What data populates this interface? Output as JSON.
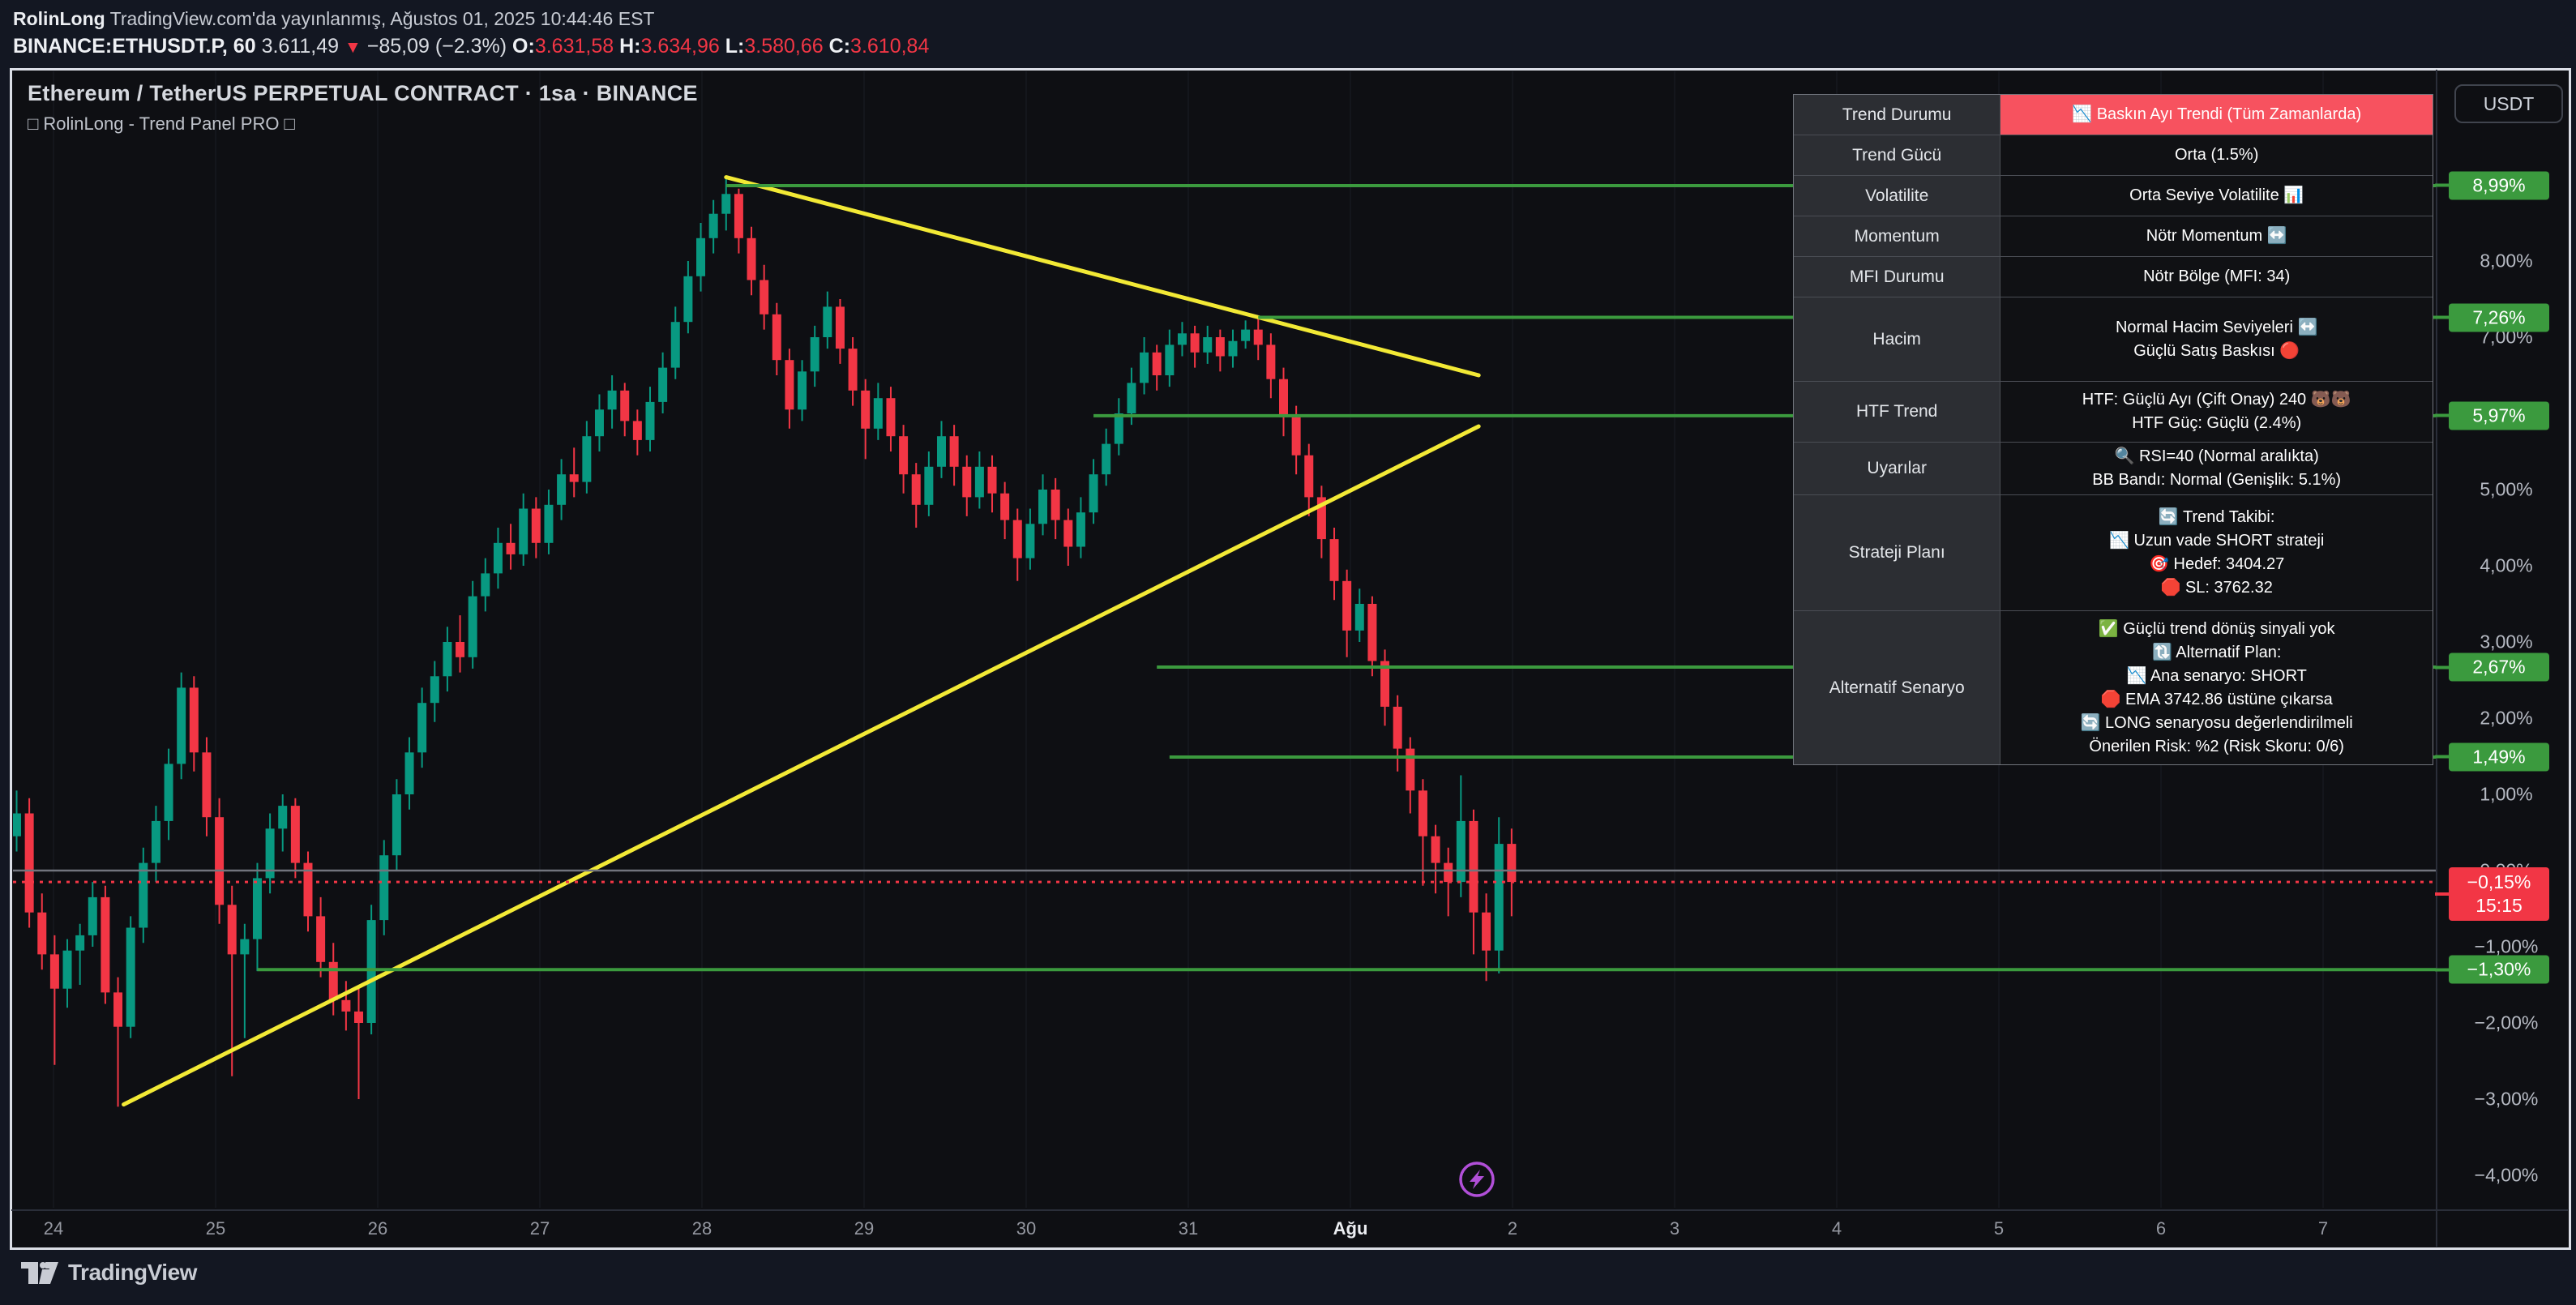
{
  "header": {
    "author": "RolinLong",
    "published": " TradingView.com'da yayınlanmış, Ağustos 01, 2025 10:44:46 EST",
    "symbol": "BINANCE:ETHUSDT.P, 60",
    "last_price": "3.611,49",
    "down_arrow": "▼",
    "change": "−85,09 (−2.3%)",
    "o_label": "O:",
    "o_value": "3.631,58",
    "h_label": "H:",
    "h_value": "3.634,96",
    "l_label": "L:",
    "l_value": "3.580,66",
    "c_label": "C:",
    "c_value": "3.610,84"
  },
  "chart_title": {
    "line1": "Ethereum / TetherUS PERPETUAL CONTRACT · 1sa · BINANCE",
    "line2": "□ RolinLong - Trend Panel PRO □"
  },
  "panel": {
    "rows": [
      {
        "label": "Trend Durumu",
        "lines": [
          "📉 Baskın Ayı Trendi (Tüm Zamanlarda)"
        ],
        "highlight": "red",
        "height": 50
      },
      {
        "label": "Trend Gücü",
        "lines": [
          "Orta (1.5%)"
        ],
        "height": 50
      },
      {
        "label": "Volatilite",
        "lines": [
          "Orta Seviye Volatilite 📊"
        ],
        "height": 50
      },
      {
        "label": "Momentum",
        "lines": [
          "Nötr Momentum ↔️"
        ],
        "height": 50
      },
      {
        "label": "MFI Durumu",
        "lines": [
          "Nötr Bölge (MFI: 34)"
        ],
        "height": 50
      },
      {
        "label": "Hacim",
        "lines": [
          "Normal Hacim Seviyeleri ↔️",
          "Güçlü Satış Baskısı 🔴"
        ],
        "height": 104
      },
      {
        "label": "HTF Trend",
        "lines": [
          "HTF: Güçlü Ayı (Çift Onay) 240 🐻🐻",
          "HTF Güç: Güçlü (2.4%)"
        ],
        "height": 75
      },
      {
        "label": "Uyarılar",
        "lines": [
          "🔍 RSI=40 (Normal aralıkta)",
          "BB Bandı: Normal (Genişlik: 5.1%)"
        ],
        "height": 65
      },
      {
        "label": "Strateji Planı",
        "lines": [
          "🔄 Trend Takibi:",
          "📉 Uzun vade SHORT strateji",
          "🎯 Hedef: 3404.27",
          "🛑 SL: 3762.32"
        ],
        "height": 143
      },
      {
        "label": "Alternatif Senaryo",
        "lines": [
          "✅ Güçlü trend dönüş sinyali yok",
          "🔃 Alternatif Plan:",
          "📉 Ana senaryo: SHORT",
          "🛑 EMA 3742.86 üstüne çıkarsa",
          "🔄 LONG senaryosu değerlendirilmeli",
          "Önerilen Risk: %2 (Risk Skoru: 0/6)"
        ],
        "height": 189
      }
    ]
  },
  "price_scale": {
    "currency_button": "USDT",
    "labels": [
      {
        "text": "8,99%",
        "pct": 8.99,
        "style": "green"
      },
      {
        "text": "8,00%",
        "pct": 8.0,
        "style": "plain"
      },
      {
        "text": "7,00%",
        "pct": 7.0,
        "style": "plain"
      },
      {
        "text": "7,26%",
        "pct": 7.26,
        "style": "green"
      },
      {
        "text": "5,97%",
        "pct": 5.97,
        "style": "green"
      },
      {
        "text": "5,00%",
        "pct": 5.0,
        "style": "plain"
      },
      {
        "text": "4,00%",
        "pct": 4.0,
        "style": "plain"
      },
      {
        "text": "3,00%",
        "pct": 3.0,
        "style": "plain"
      },
      {
        "text": "2,67%",
        "pct": 2.67,
        "style": "green"
      },
      {
        "text": "2,00%",
        "pct": 2.0,
        "style": "plain"
      },
      {
        "text": "1,49%",
        "pct": 1.49,
        "style": "green"
      },
      {
        "text": "1,00%",
        "pct": 1.0,
        "style": "plain"
      },
      {
        "text": "0,00%",
        "pct": 0.0,
        "style": "plain"
      },
      {
        "text": "−1,00%",
        "pct": -1.0,
        "style": "plain"
      },
      {
        "text": "−1,30%",
        "pct": -1.3,
        "style": "green"
      },
      {
        "text": "−2,00%",
        "pct": -2.0,
        "style": "plain"
      },
      {
        "text": "−3,00%",
        "pct": -3.0,
        "style": "plain"
      },
      {
        "text": "−4,00%",
        "pct": -4.0,
        "style": "plain"
      }
    ],
    "current": {
      "text": "−0,15%",
      "time": "15:15",
      "pct": -0.15
    }
  },
  "time_axis": {
    "ticks": [
      {
        "label": "24"
      },
      {
        "label": "25"
      },
      {
        "label": "26"
      },
      {
        "label": "27"
      },
      {
        "label": "28"
      },
      {
        "label": "29"
      },
      {
        "label": "30"
      },
      {
        "label": "31"
      },
      {
        "label": "Ağu",
        "bold": true
      },
      {
        "label": "2"
      },
      {
        "label": "3"
      },
      {
        "label": "4"
      },
      {
        "label": "5"
      },
      {
        "label": "6"
      },
      {
        "label": "7"
      }
    ]
  },
  "watermark": "TradingView",
  "chart_data": {
    "type": "candlestick",
    "title": "Ethereum / TetherUS PERPETUAL CONTRACT, 60 min, BINANCE",
    "y_axis_unit": "percent",
    "ylim": [
      -4.6,
      10.4
    ],
    "x_dates": [
      "24",
      "25",
      "26",
      "27",
      "28",
      "29",
      "30",
      "31",
      "Ağu",
      "2",
      "3",
      "4",
      "5",
      "6",
      "7"
    ],
    "current_price_pct": -0.15,
    "current_price_time": "15:15",
    "colors": {
      "up": "#089981",
      "down": "#f23645",
      "hline": "#3b9a3e",
      "trendline": "#f2e935",
      "zero_line": "#71747d",
      "price_line": "#f23645",
      "grid": "#1b1e26",
      "marker": "#b14fd8"
    },
    "hlines": [
      {
        "pct": 8.99,
        "start_bar": 56
      },
      {
        "pct": 7.26,
        "start_bar": 98
      },
      {
        "pct": 5.97,
        "start_bar": 85
      },
      {
        "pct": 2.67,
        "start_bar": 90
      },
      {
        "pct": 1.49,
        "start_bar": 91
      },
      {
        "pct": -1.3,
        "start_bar": 19
      }
    ],
    "trendlines": [
      {
        "x1_bar": 56,
        "y1_pct": 9.1,
        "x2_bar": 115.4,
        "y2_pct": 6.5
      },
      {
        "x1_bar": 8.45,
        "y1_pct": -3.07,
        "x2_bar": 115.4,
        "y2_pct": 5.83
      }
    ],
    "zero_line_pct": 0.0,
    "candles_ohlc_pct": [
      [
        0.45,
        1.05,
        0.25,
        0.75
      ],
      [
        0.75,
        0.95,
        -0.75,
        -0.55
      ],
      [
        -0.55,
        -0.3,
        -1.3,
        -1.1
      ],
      [
        -1.1,
        -0.85,
        -2.55,
        -1.55
      ],
      [
        -1.55,
        -0.9,
        -1.8,
        -1.05
      ],
      [
        -1.05,
        -0.7,
        -1.5,
        -0.85
      ],
      [
        -0.85,
        -0.15,
        -1.0,
        -0.35
      ],
      [
        -0.35,
        -0.2,
        -1.75,
        -1.6
      ],
      [
        -1.6,
        -1.4,
        -3.1,
        -2.05
      ],
      [
        -2.05,
        -0.6,
        -2.2,
        -0.75
      ],
      [
        -0.75,
        0.3,
        -0.95,
        0.1
      ],
      [
        0.1,
        0.85,
        -0.15,
        0.65
      ],
      [
        0.65,
        1.6,
        0.4,
        1.4
      ],
      [
        1.4,
        2.6,
        1.2,
        2.4
      ],
      [
        2.4,
        2.55,
        1.3,
        1.55
      ],
      [
        1.55,
        1.75,
        0.45,
        0.7
      ],
      [
        0.7,
        0.95,
        -0.7,
        -0.45
      ],
      [
        -0.45,
        -0.2,
        -2.7,
        -1.1
      ],
      [
        -1.1,
        -0.7,
        -2.2,
        -0.9
      ],
      [
        -0.9,
        0.1,
        -1.32,
        -0.1
      ],
      [
        -0.1,
        0.75,
        -0.3,
        0.55
      ],
      [
        0.55,
        1.0,
        0.25,
        0.85
      ],
      [
        0.85,
        0.95,
        -0.1,
        0.1
      ],
      [
        0.1,
        0.25,
        -0.8,
        -0.6
      ],
      [
        -0.6,
        -0.35,
        -1.4,
        -1.2
      ],
      [
        -1.2,
        -0.95,
        -1.9,
        -1.7
      ],
      [
        -1.7,
        -1.45,
        -2.1,
        -1.85
      ],
      [
        -1.85,
        -1.55,
        -3.0,
        -2.0
      ],
      [
        -2.0,
        -0.45,
        -2.15,
        -0.65
      ],
      [
        -0.65,
        0.4,
        -0.85,
        0.2
      ],
      [
        0.2,
        1.2,
        0.0,
        1.0
      ],
      [
        1.0,
        1.75,
        0.8,
        1.55
      ],
      [
        1.55,
        2.4,
        1.35,
        2.2
      ],
      [
        2.2,
        2.75,
        1.95,
        2.55
      ],
      [
        2.55,
        3.2,
        2.35,
        3.0
      ],
      [
        3.0,
        3.35,
        2.6,
        2.8
      ],
      [
        2.8,
        3.8,
        2.65,
        3.6
      ],
      [
        3.6,
        4.1,
        3.4,
        3.9
      ],
      [
        3.9,
        4.5,
        3.7,
        4.3
      ],
      [
        4.3,
        4.55,
        3.95,
        4.15
      ],
      [
        4.15,
        4.95,
        4.0,
        4.75
      ],
      [
        4.75,
        4.9,
        4.1,
        4.3
      ],
      [
        4.3,
        5.0,
        4.15,
        4.8
      ],
      [
        4.8,
        5.4,
        4.6,
        5.2
      ],
      [
        5.2,
        5.55,
        4.9,
        5.1
      ],
      [
        5.1,
        5.9,
        4.95,
        5.7
      ],
      [
        5.7,
        6.25,
        5.5,
        6.05
      ],
      [
        6.05,
        6.5,
        5.8,
        6.3
      ],
      [
        6.3,
        6.4,
        5.7,
        5.9
      ],
      [
        5.9,
        6.05,
        5.45,
        5.65
      ],
      [
        5.65,
        6.35,
        5.5,
        6.15
      ],
      [
        6.15,
        6.8,
        6.0,
        6.6
      ],
      [
        6.6,
        7.4,
        6.45,
        7.2
      ],
      [
        7.2,
        8.0,
        7.05,
        7.8
      ],
      [
        7.8,
        8.5,
        7.6,
        8.3
      ],
      [
        8.3,
        8.8,
        8.1,
        8.62
      ],
      [
        8.62,
        9.1,
        8.4,
        8.88
      ],
      [
        8.88,
        8.95,
        8.1,
        8.3
      ],
      [
        8.3,
        8.45,
        7.55,
        7.75
      ],
      [
        7.75,
        7.95,
        7.1,
        7.3
      ],
      [
        7.3,
        7.45,
        6.5,
        6.7
      ],
      [
        6.7,
        6.85,
        5.8,
        6.05
      ],
      [
        6.05,
        6.7,
        5.9,
        6.55
      ],
      [
        6.55,
        7.15,
        6.35,
        7.0
      ],
      [
        7.0,
        7.6,
        6.85,
        7.4
      ],
      [
        7.4,
        7.5,
        6.65,
        6.85
      ],
      [
        6.85,
        7.0,
        6.1,
        6.3
      ],
      [
        6.3,
        6.45,
        5.4,
        5.8
      ],
      [
        5.8,
        6.4,
        5.65,
        6.2
      ],
      [
        6.2,
        6.35,
        5.5,
        5.7
      ],
      [
        5.7,
        5.85,
        4.95,
        5.2
      ],
      [
        5.2,
        5.35,
        4.5,
        4.8
      ],
      [
        4.8,
        5.5,
        4.65,
        5.3
      ],
      [
        5.3,
        5.9,
        5.15,
        5.7
      ],
      [
        5.7,
        5.85,
        5.05,
        5.3
      ],
      [
        5.3,
        5.45,
        4.65,
        4.9
      ],
      [
        4.9,
        5.5,
        4.75,
        5.3
      ],
      [
        5.3,
        5.45,
        4.7,
        4.95
      ],
      [
        4.95,
        5.1,
        4.35,
        4.6
      ],
      [
        4.6,
        4.75,
        3.8,
        4.1
      ],
      [
        4.1,
        4.75,
        3.95,
        4.55
      ],
      [
        4.55,
        5.2,
        4.4,
        5.0
      ],
      [
        5.0,
        5.15,
        4.35,
        4.6
      ],
      [
        4.6,
        4.75,
        4.0,
        4.25
      ],
      [
        4.25,
        4.9,
        4.1,
        4.7
      ],
      [
        4.7,
        5.4,
        4.55,
        5.2
      ],
      [
        5.2,
        5.8,
        5.05,
        5.6
      ],
      [
        5.6,
        6.2,
        5.45,
        6.0
      ],
      [
        6.0,
        6.6,
        5.85,
        6.4
      ],
      [
        6.4,
        7.0,
        6.25,
        6.8
      ],
      [
        6.8,
        6.9,
        6.3,
        6.5
      ],
      [
        6.5,
        7.1,
        6.35,
        6.9
      ],
      [
        6.9,
        7.2,
        6.75,
        7.05
      ],
      [
        7.05,
        7.15,
        6.6,
        6.8
      ],
      [
        6.8,
        7.15,
        6.65,
        7.0
      ],
      [
        7.0,
        7.1,
        6.55,
        6.75
      ],
      [
        6.75,
        7.1,
        6.6,
        6.95
      ],
      [
        6.95,
        7.22,
        6.85,
        7.1
      ],
      [
        7.1,
        7.24,
        6.7,
        6.9
      ],
      [
        6.9,
        7.05,
        6.2,
        6.45
      ],
      [
        6.45,
        6.6,
        5.7,
        5.95
      ],
      [
        5.95,
        6.1,
        5.2,
        5.45
      ],
      [
        5.45,
        5.6,
        4.65,
        4.9
      ],
      [
        4.9,
        5.05,
        4.1,
        4.35
      ],
      [
        4.35,
        4.5,
        3.55,
        3.8
      ],
      [
        3.8,
        3.95,
        2.8,
        3.15
      ],
      [
        3.15,
        3.7,
        3.0,
        3.5
      ],
      [
        3.5,
        3.6,
        2.55,
        2.75
      ],
      [
        2.75,
        2.9,
        1.9,
        2.15
      ],
      [
        2.15,
        2.3,
        1.3,
        1.6
      ],
      [
        1.6,
        1.75,
        0.75,
        1.05
      ],
      [
        1.05,
        1.2,
        -0.2,
        0.45
      ],
      [
        0.45,
        0.6,
        -0.3,
        0.1
      ],
      [
        0.1,
        0.3,
        -0.6,
        -0.15
      ],
      [
        -0.15,
        1.25,
        -0.35,
        0.65
      ],
      [
        0.65,
        0.8,
        -1.1,
        -0.55
      ],
      [
        -0.55,
        -0.3,
        -1.45,
        -1.05
      ],
      [
        -1.05,
        0.7,
        -1.35,
        0.35
      ],
      [
        0.35,
        0.55,
        -0.6,
        -0.15
      ]
    ]
  }
}
